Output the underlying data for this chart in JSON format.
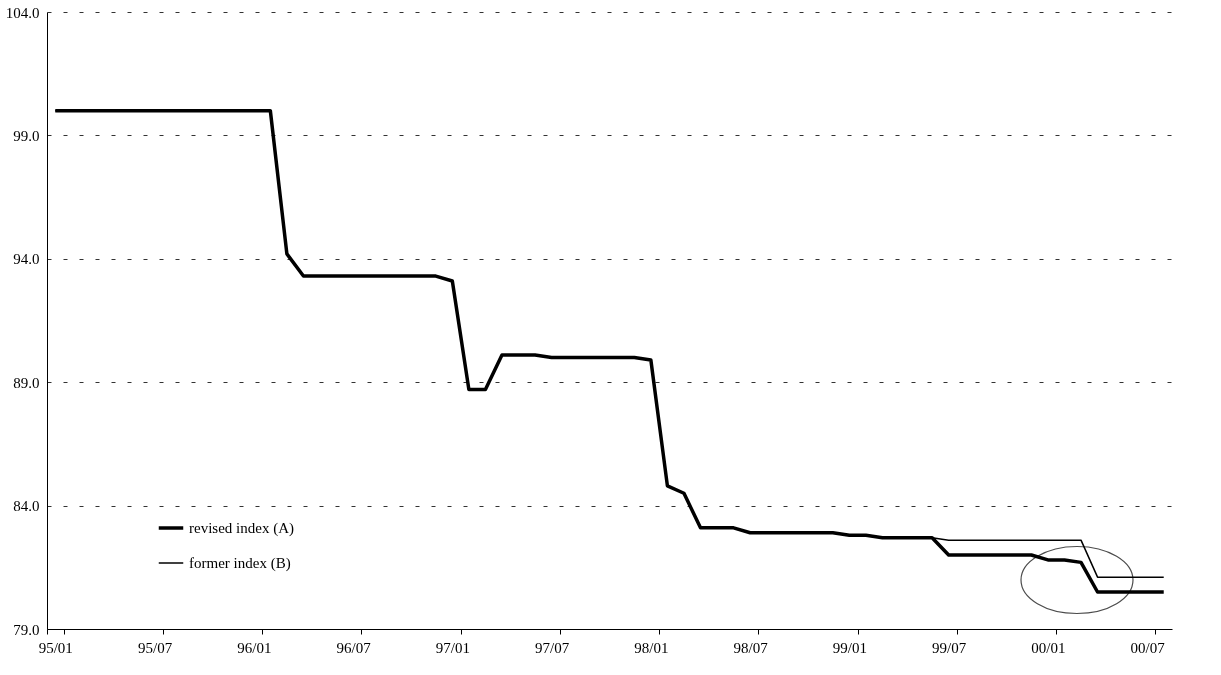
{
  "chart_data": {
    "type": "line",
    "categories": [
      "95/01",
      null,
      null,
      null,
      null,
      null,
      "95/07",
      null,
      null,
      null,
      null,
      null,
      "96/01",
      null,
      null,
      null,
      null,
      null,
      "96/07",
      null,
      null,
      null,
      null,
      null,
      "97/01",
      null,
      null,
      null,
      null,
      null,
      "97/07",
      null,
      null,
      null,
      null,
      null,
      "98/01",
      null,
      null,
      null,
      null,
      null,
      "98/07",
      null,
      null,
      null,
      null,
      null,
      "99/01",
      null,
      null,
      null,
      null,
      null,
      "99/07",
      null,
      null,
      null,
      null,
      null,
      "00/01",
      null,
      null,
      null,
      null,
      null,
      "00/07",
      null
    ],
    "series": [
      {
        "name": "revised index (A)",
        "color": "#000000",
        "values": [
          100.0,
          100.0,
          100.0,
          100.0,
          100.0,
          100.0,
          100.0,
          100.0,
          100.0,
          100.0,
          100.0,
          100.0,
          100.0,
          100.0,
          94.2,
          93.3,
          93.3,
          93.3,
          93.3,
          93.3,
          93.3,
          93.3,
          93.3,
          93.3,
          93.1,
          88.7,
          88.7,
          90.1,
          90.1,
          90.1,
          90.0,
          90.0,
          90.0,
          90.0,
          90.0,
          90.0,
          89.9,
          84.8,
          84.5,
          83.1,
          83.1,
          83.1,
          82.9,
          82.9,
          82.9,
          82.9,
          82.9,
          82.9,
          82.8,
          82.8,
          82.7,
          82.7,
          82.7,
          82.7,
          82.0,
          82.0,
          82.0,
          82.0,
          82.0,
          82.0,
          81.8,
          81.8,
          81.7,
          80.5,
          80.5,
          80.5,
          80.5,
          80.5
        ]
      },
      {
        "name": "former index (B)",
        "color": "#000000",
        "values": [
          100.0,
          100.0,
          100.0,
          100.0,
          100.0,
          100.0,
          100.0,
          100.0,
          100.0,
          100.0,
          100.0,
          100.0,
          100.0,
          100.0,
          94.2,
          93.3,
          93.3,
          93.3,
          93.3,
          93.3,
          93.3,
          93.3,
          93.3,
          93.3,
          93.1,
          88.7,
          88.7,
          90.1,
          90.1,
          90.1,
          90.0,
          90.0,
          90.0,
          90.0,
          90.0,
          90.0,
          89.9,
          84.8,
          84.5,
          83.1,
          83.1,
          83.1,
          82.9,
          82.9,
          82.9,
          82.9,
          82.9,
          82.9,
          82.8,
          82.8,
          82.7,
          82.7,
          82.7,
          82.7,
          82.6,
          82.6,
          82.6,
          82.6,
          82.6,
          82.6,
          82.6,
          82.6,
          82.6,
          81.1,
          81.1,
          81.1,
          81.1,
          81.1
        ]
      }
    ],
    "ylim": [
      79,
      104
    ],
    "yticks": [
      {
        "value": 79,
        "label": "79.0"
      },
      {
        "value": 84,
        "label": "84.0"
      },
      {
        "value": 89,
        "label": "89.0"
      },
      {
        "value": 94,
        "label": "94.0"
      },
      {
        "value": 99,
        "label": "99.0"
      },
      {
        "value": 104,
        "label": "104.0"
      }
    ],
    "grid": "y",
    "legend": "bottom left",
    "line_style": "solid",
    "marker": "none"
  }
}
